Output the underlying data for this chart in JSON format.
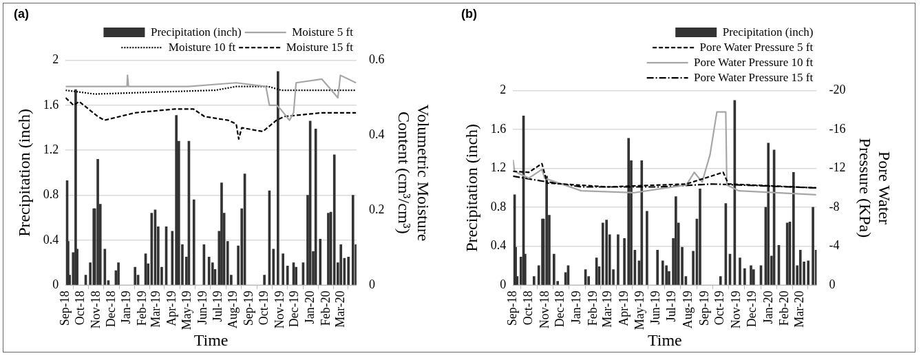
{
  "chart_data": [
    {
      "type": "bar",
      "title": "(a)",
      "xlabel": "Time",
      "ylabel": "Precipitation (inch)",
      "y2label": "Volumetric Moisture Content (cm³/cm³)",
      "legend": "top",
      "grid": "y",
      "xlim": [
        "2018-09-01",
        "2020-04-01"
      ],
      "xticks": [
        {
          "value": "2018-09-01",
          "label": "Sep-18"
        },
        {
          "value": "2018-10-01",
          "label": "Oct-18"
        },
        {
          "value": "2018-11-01",
          "label": "Nov-18"
        },
        {
          "value": "2018-12-01",
          "label": "Dec-18"
        },
        {
          "value": "2019-01-01",
          "label": "Jan-19"
        },
        {
          "value": "2019-02-01",
          "label": "Feb-19"
        },
        {
          "value": "2019-03-01",
          "label": "Mar-19"
        },
        {
          "value": "2019-04-01",
          "label": "Apr-19"
        },
        {
          "value": "2019-05-01",
          "label": "May-19"
        },
        {
          "value": "2019-06-01",
          "label": "Jun-19"
        },
        {
          "value": "2019-07-01",
          "label": "Jul-19"
        },
        {
          "value": "2019-08-01",
          "label": "Aug-19"
        },
        {
          "value": "2019-09-01",
          "label": "Sep-19"
        },
        {
          "value": "2019-10-01",
          "label": "Oct-19"
        },
        {
          "value": "2019-11-01",
          "label": "Nov-19"
        },
        {
          "value": "2019-12-01",
          "label": "Dec-19"
        },
        {
          "value": "2020-01-01",
          "label": "Jan-20"
        },
        {
          "value": "2020-02-01",
          "label": "Feb-20"
        },
        {
          "value": "2020-03-01",
          "label": "Mar-20"
        }
      ],
      "ylim": [
        0,
        2
      ],
      "yticks": [
        0,
        0.4,
        0.8,
        1.2,
        1.6,
        2
      ],
      "y2lim": [
        0,
        0.6
      ],
      "y2ticks": [
        0,
        0.2,
        0.4,
        0.6
      ],
      "series": [
        {
          "name": "Precipitation (inch)",
          "color": "#333333",
          "x": [
            "2018-09-04",
            "2018-09-06",
            "2018-09-09",
            "2018-09-16",
            "2018-09-21",
            "2018-09-24",
            "2018-10-11",
            "2018-10-20",
            "2018-10-27",
            "2018-10-29",
            "2018-11-04",
            "2018-11-09",
            "2018-11-18",
            "2018-11-25",
            "2018-12-10",
            "2018-12-15",
            "2019-01-17",
            "2019-01-23",
            "2019-02-07",
            "2019-02-12",
            "2019-02-19",
            "2019-02-26",
            "2019-03-04",
            "2019-03-11",
            "2019-03-20",
            "2019-04-01",
            "2019-04-09",
            "2019-04-14",
            "2019-04-21",
            "2019-04-29",
            "2019-05-04",
            "2019-05-14",
            "2019-06-03",
            "2019-06-13",
            "2019-06-20",
            "2019-06-25",
            "2019-07-03",
            "2019-07-08",
            "2019-07-13",
            "2019-07-20",
            "2019-07-27",
            "2019-08-10",
            "2019-08-17",
            "2019-08-23",
            "2019-10-01",
            "2019-10-11",
            "2019-10-19",
            "2019-10-28",
            "2019-11-07",
            "2019-11-16",
            "2019-11-28",
            "2019-12-03",
            "2019-12-17",
            "2019-12-26",
            "2019-12-31",
            "2020-01-06",
            "2020-01-11",
            "2020-01-20",
            "2020-02-05",
            "2020-02-10",
            "2020-02-17",
            "2020-02-24",
            "2020-03-01",
            "2020-03-08",
            "2020-03-16",
            "2020-03-25",
            "2020-03-31"
          ],
          "values": [
            0.93,
            0.39,
            0.09,
            0.29,
            1.74,
            0.32,
            0.09,
            0.2,
            0.68,
            0.68,
            1.12,
            0.72,
            0.32,
            0.04,
            0.13,
            0.2,
            0.16,
            0.09,
            0.28,
            0.19,
            0.64,
            0.67,
            0.52,
            0.16,
            0.52,
            0.48,
            1.51,
            1.28,
            0.36,
            0.25,
            1.28,
            0.76,
            0.36,
            0.25,
            0.2,
            0.14,
            0.48,
            0.91,
            0.64,
            0.39,
            0.09,
            0.35,
            0.68,
            0.99,
            0.09,
            0.84,
            0.32,
            1.9,
            0.28,
            0.17,
            0.2,
            0.16,
            0.2,
            0.8,
            1.46,
            0.3,
            1.39,
            0.41,
            0.64,
            0.65,
            1.16,
            0.2,
            0.36,
            0.24,
            0.25,
            0.8,
            0.36
          ]
        },
        {
          "name": "Moisture 5 ft",
          "type": "line",
          "axis": "y2",
          "line_style": "solid",
          "color": "#a6a6a6",
          "x": [
            "2018-09-01",
            "2018-10-29",
            "2019-01-01",
            "2019-01-02",
            "2019-01-04",
            "2019-05-03",
            "2019-08-06",
            "2019-10-04",
            "2019-10-11",
            "2019-10-25",
            "2019-11-02",
            "2019-11-20",
            "2019-11-28",
            "2019-12-03",
            "2020-01-23",
            "2020-02-24",
            "2020-02-29",
            "2020-03-31"
          ],
          "values": [
            0.53,
            0.53,
            0.53,
            0.56,
            0.53,
            0.53,
            0.54,
            0.53,
            0.48,
            0.48,
            0.47,
            0.44,
            0.46,
            0.54,
            0.55,
            0.5,
            0.56,
            0.54
          ]
        },
        {
          "name": "Moisture 10 ft",
          "type": "line",
          "axis": "y2",
          "line_style": "dotted",
          "color": "#000000",
          "x": [
            "2018-09-01",
            "2018-10-29",
            "2019-06-20",
            "2019-06-25",
            "2019-08-06",
            "2019-10-09",
            "2019-11-04",
            "2020-03-31"
          ],
          "values": [
            0.52,
            0.51,
            0.52,
            0.52,
            0.53,
            0.53,
            0.52,
            0.52
          ]
        },
        {
          "name": "Moisture 15 ft",
          "type": "line",
          "axis": "y2",
          "line_style": "dashed",
          "color": "#000000",
          "x": [
            "2018-09-01",
            "2018-09-17",
            "2018-09-28",
            "2018-11-04",
            "2018-11-17",
            "2019-01-17",
            "2019-04-06",
            "2019-05-13",
            "2019-06-04",
            "2019-07-21",
            "2019-08-06",
            "2019-08-11",
            "2019-08-17",
            "2019-09-28",
            "2019-10-25",
            "2019-11-10",
            "2020-01-23",
            "2020-03-31"
          ],
          "values": [
            0.5,
            0.48,
            0.49,
            0.45,
            0.44,
            0.46,
            0.47,
            0.47,
            0.45,
            0.44,
            0.43,
            0.39,
            0.42,
            0.41,
            0.44,
            0.45,
            0.46,
            0.46
          ]
        }
      ]
    },
    {
      "type": "bar",
      "title": "(b)",
      "xlabel": "Time",
      "ylabel": "Precipitation (inch)",
      "y2label": "Pore Water Pressure (KPa)",
      "legend": "top",
      "grid": "y",
      "xlim": [
        "2018-09-01",
        "2020-04-01"
      ],
      "xticks": [
        {
          "value": "2018-09-01",
          "label": "Sep-18"
        },
        {
          "value": "2018-10-01",
          "label": "Oct-18"
        },
        {
          "value": "2018-11-01",
          "label": "Nov-18"
        },
        {
          "value": "2018-12-01",
          "label": "Dec-18"
        },
        {
          "value": "2019-01-01",
          "label": "Jan-19"
        },
        {
          "value": "2019-02-01",
          "label": "Feb-19"
        },
        {
          "value": "2019-03-01",
          "label": "Mar-19"
        },
        {
          "value": "2019-04-01",
          "label": "Apr-19"
        },
        {
          "value": "2019-05-01",
          "label": "May-19"
        },
        {
          "value": "2019-06-01",
          "label": "Jun-19"
        },
        {
          "value": "2019-07-01",
          "label": "Jul-19"
        },
        {
          "value": "2019-08-01",
          "label": "Aug-19"
        },
        {
          "value": "2019-09-01",
          "label": "Sep-19"
        },
        {
          "value": "2019-10-01",
          "label": "Oct-19"
        },
        {
          "value": "2019-11-01",
          "label": "Nov-19"
        },
        {
          "value": "2019-12-01",
          "label": "Dec-19"
        },
        {
          "value": "2020-01-01",
          "label": "Jan-20"
        },
        {
          "value": "2020-02-01",
          "label": "Feb-20"
        },
        {
          "value": "2020-03-01",
          "label": "Mar-20"
        }
      ],
      "ylim": [
        0,
        2
      ],
      "yticks": [
        0,
        0.4,
        0.8,
        1.2,
        1.6,
        2
      ],
      "y2lim": [
        0,
        -20
      ],
      "y2ticks": [
        0,
        -4,
        -8,
        -12,
        -16,
        -20
      ],
      "series": [
        {
          "name": "Precipitation (inch)",
          "color": "#333333",
          "x": [
            "2018-09-04",
            "2018-09-06",
            "2018-09-09",
            "2018-09-16",
            "2018-09-21",
            "2018-09-24",
            "2018-10-11",
            "2018-10-20",
            "2018-10-27",
            "2018-10-29",
            "2018-11-04",
            "2018-11-09",
            "2018-11-18",
            "2018-11-25",
            "2018-12-10",
            "2018-12-15",
            "2019-01-17",
            "2019-01-23",
            "2019-02-07",
            "2019-02-12",
            "2019-02-19",
            "2019-02-26",
            "2019-03-04",
            "2019-03-11",
            "2019-03-20",
            "2019-04-01",
            "2019-04-09",
            "2019-04-14",
            "2019-04-21",
            "2019-04-29",
            "2019-05-04",
            "2019-05-14",
            "2019-06-03",
            "2019-06-13",
            "2019-06-20",
            "2019-06-25",
            "2019-07-03",
            "2019-07-08",
            "2019-07-13",
            "2019-07-20",
            "2019-07-27",
            "2019-08-10",
            "2019-08-17",
            "2019-08-23",
            "2019-10-01",
            "2019-10-11",
            "2019-10-19",
            "2019-10-28",
            "2019-11-07",
            "2019-11-16",
            "2019-11-28",
            "2019-12-03",
            "2019-12-17",
            "2019-12-26",
            "2019-12-31",
            "2020-01-06",
            "2020-01-11",
            "2020-01-20",
            "2020-02-05",
            "2020-02-10",
            "2020-02-17",
            "2020-02-24",
            "2020-03-01",
            "2020-03-08",
            "2020-03-16",
            "2020-03-25",
            "2020-03-31"
          ],
          "values": [
            0.93,
            0.39,
            0.09,
            0.29,
            1.74,
            0.32,
            0.09,
            0.2,
            0.68,
            0.68,
            1.12,
            0.72,
            0.32,
            0.04,
            0.13,
            0.2,
            0.16,
            0.09,
            0.28,
            0.19,
            0.64,
            0.67,
            0.52,
            0.16,
            0.52,
            0.48,
            1.51,
            1.28,
            0.36,
            0.25,
            1.28,
            0.76,
            0.36,
            0.25,
            0.2,
            0.14,
            0.48,
            0.91,
            0.64,
            0.39,
            0.09,
            0.35,
            0.68,
            0.99,
            0.09,
            0.84,
            0.32,
            1.9,
            0.28,
            0.17,
            0.2,
            0.16,
            0.2,
            0.8,
            1.46,
            0.3,
            1.39,
            0.41,
            0.64,
            0.65,
            1.16,
            0.2,
            0.36,
            0.24,
            0.25,
            0.8,
            0.36
          ]
        },
        {
          "name": "Pore Water Pressure 5 ft",
          "type": "line",
          "axis": "y2",
          "line_style": "dashed",
          "color": "#000000",
          "x": [
            "2018-09-01",
            "2018-10-01",
            "2018-10-26",
            "2018-11-05",
            "2019-02-28",
            "2019-07-28",
            "2019-10-06",
            "2019-10-16",
            "2020-03-31"
          ],
          "values": [
            -11.7,
            -11.6,
            -12.5,
            -10.5,
            -10.1,
            -10.4,
            -11.6,
            -10.4,
            -10
          ]
        },
        {
          "name": "Pore Water Pressure 10 ft",
          "type": "line",
          "axis": "y2",
          "line_style": "solid",
          "color": "#a6a6a6",
          "x": [
            "2018-09-01",
            "2018-09-04",
            "2018-10-01",
            "2018-10-26",
            "2018-10-31",
            "2019-01-09",
            "2019-04-19",
            "2019-07-28",
            "2019-08-12",
            "2019-08-27",
            "2019-09-11",
            "2019-09-24",
            "2019-10-11",
            "2019-10-13",
            "2019-11-05",
            "2020-03-31"
          ],
          "values": [
            -12.9,
            -11.7,
            -11,
            -11.9,
            -11,
            -9.7,
            -9.5,
            -10.3,
            -11.6,
            -10.6,
            -13.4,
            -17.8,
            -17.8,
            -10.3,
            -9.7,
            -9.3
          ]
        },
        {
          "name": "Pore Water Pressure 15 ft",
          "type": "line",
          "axis": "y2",
          "line_style": "dashdot",
          "color": "#000000",
          "x": [
            "2018-09-01",
            "2018-10-26",
            "2019-01-09",
            "2019-06-08",
            "2019-09-16",
            "2019-11-05",
            "2020-03-31"
          ],
          "values": [
            -11.2,
            -10.7,
            -10.1,
            -10.1,
            -10.4,
            -10.3,
            -10
          ]
        }
      ]
    }
  ]
}
